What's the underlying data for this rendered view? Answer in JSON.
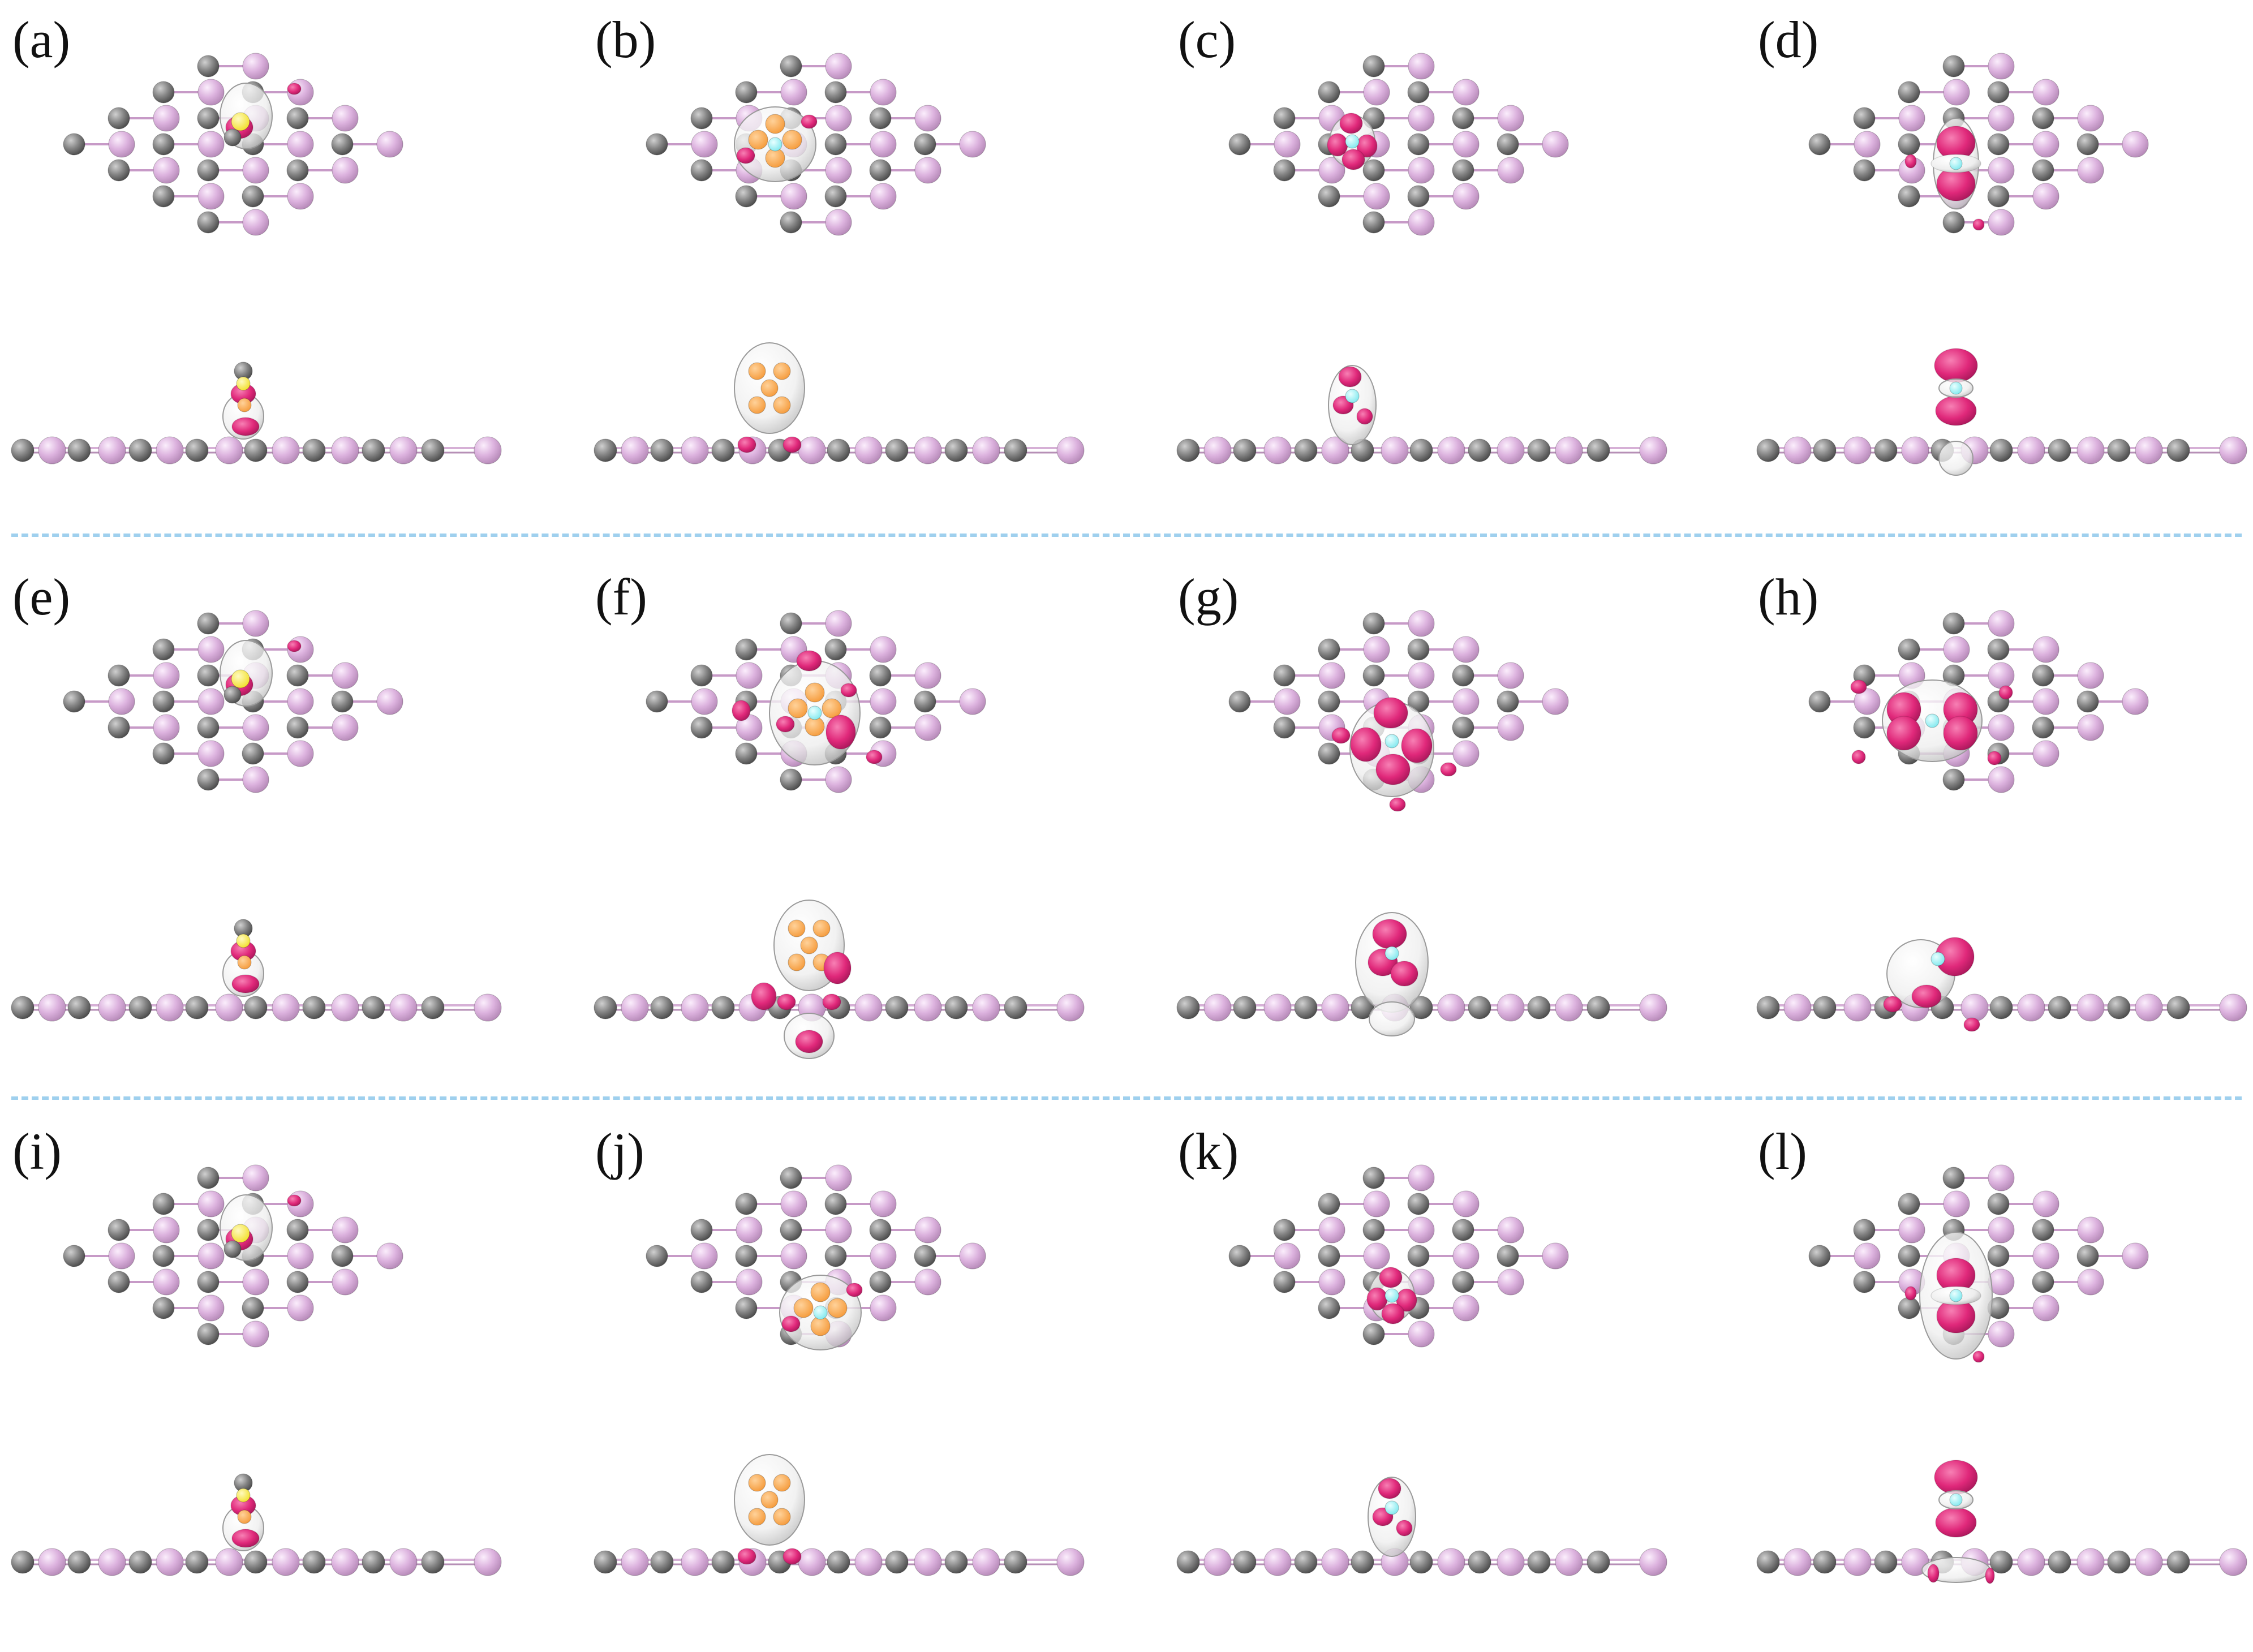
{
  "figure": {
    "panels": [
      {
        "label": "(a)",
        "adsorbate": "linear-triatomic",
        "site": "top",
        "feature": "small"
      },
      {
        "label": "(b)",
        "adsorbate": "tetrahedral-cluster",
        "site": "hollow",
        "feature": "cage"
      },
      {
        "label": "(c)",
        "adsorbate": "single-atom",
        "site": "near-carbon",
        "feature": "lobes"
      },
      {
        "label": "(d)",
        "adsorbate": "single-atom",
        "site": "center",
        "feature": "dz2"
      },
      {
        "label": "(e)",
        "adsorbate": "linear-triatomic",
        "site": "top",
        "feature": "small"
      },
      {
        "label": "(f)",
        "adsorbate": "tetrahedral-cluster",
        "site": "hollow",
        "feature": "cage-large"
      },
      {
        "label": "(g)",
        "adsorbate": "single-atom",
        "site": "center",
        "feature": "lobes-large"
      },
      {
        "label": "(h)",
        "adsorbate": "single-atom",
        "site": "left",
        "feature": "bowtie"
      },
      {
        "label": "(i)",
        "adsorbate": "linear-triatomic",
        "site": "top",
        "feature": "small"
      },
      {
        "label": "(j)",
        "adsorbate": "tetrahedral-cluster",
        "site": "lower",
        "feature": "cage"
      },
      {
        "label": "(k)",
        "adsorbate": "single-atom",
        "site": "center",
        "feature": "lobes"
      },
      {
        "label": "(l)",
        "adsorbate": "single-atom",
        "site": "center",
        "feature": "dz2-ring"
      }
    ],
    "colors": {
      "phosphorus_atom": "#dcb2de",
      "carbon_atom": "#858585",
      "charge_accumulation": "#e0287a",
      "charge_depletion": "#eeeeee",
      "adsorbate_orange": "#f59a3a",
      "adsorbate_yellow": "#f2e02a",
      "adsorbate_cyan": "#7fe8ee",
      "separator": "#9fd0ee"
    },
    "separators": 2
  }
}
